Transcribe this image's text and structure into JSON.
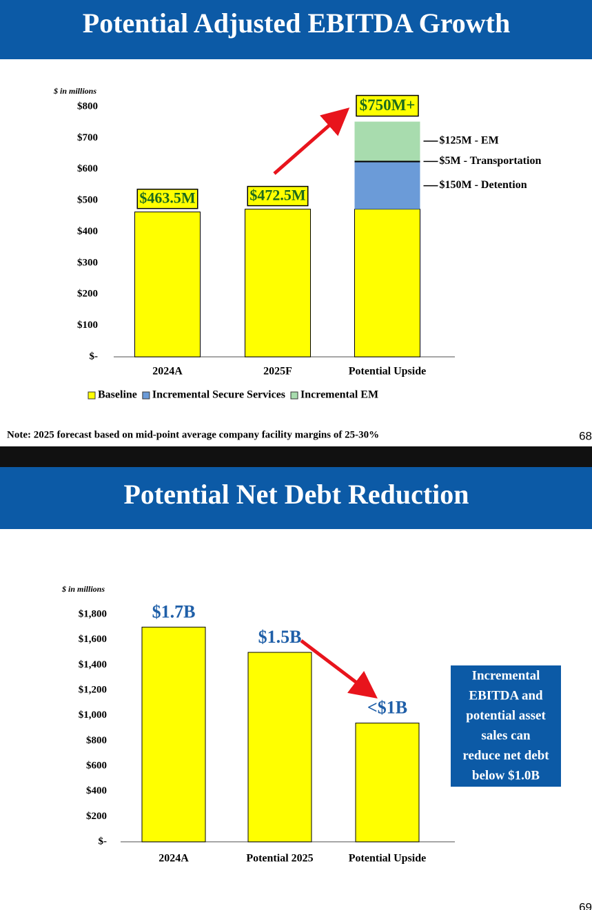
{
  "chart_data": [
    {
      "type": "stacked-bar",
      "title": "Potential Adjusted EBITDA Growth",
      "y_label": "$ in millions",
      "categories": [
        "2024A",
        "2025F",
        "Potential Upside"
      ],
      "series": [
        {
          "name": "Baseline",
          "color": "#ffff00",
          "values": [
            463.5,
            472.5,
            472.5
          ],
          "value_labels": [
            "$463.5M",
            "$472.5M",
            null
          ]
        },
        {
          "name": "Incremental Secure Services",
          "color": "#6b9bd8",
          "values": [
            null,
            null,
            150
          ],
          "value_labels": [
            null,
            null,
            "$150M - Detention"
          ]
        },
        {
          "color": "#000000",
          "values": [
            null,
            null,
            5
          ],
          "value_labels": [
            null,
            null,
            "$5M - Transportation"
          ]
        },
        {
          "name": "Incremental EM",
          "color": "#a8dcae",
          "values": [
            null,
            null,
            125
          ],
          "value_labels": [
            null,
            null,
            "$125M - EM"
          ]
        }
      ],
      "annotation": "$750M+",
      "ylim": [
        0,
        800
      ],
      "yticks": [
        {
          "value": 0,
          "label": "$-"
        },
        {
          "value": 100,
          "label": "$100"
        },
        {
          "value": 200,
          "label": "$200"
        },
        {
          "value": 300,
          "label": "$300"
        },
        {
          "value": 400,
          "label": "$400"
        },
        {
          "value": 500,
          "label": "$500"
        },
        {
          "value": 600,
          "label": "$600"
        },
        {
          "value": 700,
          "label": "$700"
        },
        {
          "value": 800,
          "label": "$800"
        }
      ],
      "legend": "bottom",
      "note": "Note: 2025 forecast based on mid-point average company facility margins of 25-30%",
      "page_number": "68"
    },
    {
      "type": "bar",
      "title": "Potential Net Debt Reduction",
      "y_label": "$ in millions",
      "categories": [
        "2024A",
        "Potential 2025",
        "Potential Upside"
      ],
      "values": [
        1700,
        1500,
        940
      ],
      "value_labels": [
        "$1.7B",
        "$1.5B",
        "<$1B"
      ],
      "color": "#ffff00",
      "ylim": [
        0,
        1800
      ],
      "yticks": [
        {
          "value": 0,
          "label": "$-"
        },
        {
          "value": 200,
          "label": "$200"
        },
        {
          "value": 400,
          "label": "$400"
        },
        {
          "value": 600,
          "label": "$600"
        },
        {
          "value": 800,
          "label": "$800"
        },
        {
          "value": 1000,
          "label": "$1,000"
        },
        {
          "value": 1200,
          "label": "$1,200"
        },
        {
          "value": 1400,
          "label": "$1,400"
        },
        {
          "value": 1600,
          "label": "$1,600"
        },
        {
          "value": 1800,
          "label": "$1,800"
        }
      ],
      "box_lines": [
        "Incremental",
        "EBITDA and",
        "potential asset",
        "sales can",
        "reduce net debt",
        "below $1.0B"
      ],
      "page_number": "69"
    }
  ]
}
